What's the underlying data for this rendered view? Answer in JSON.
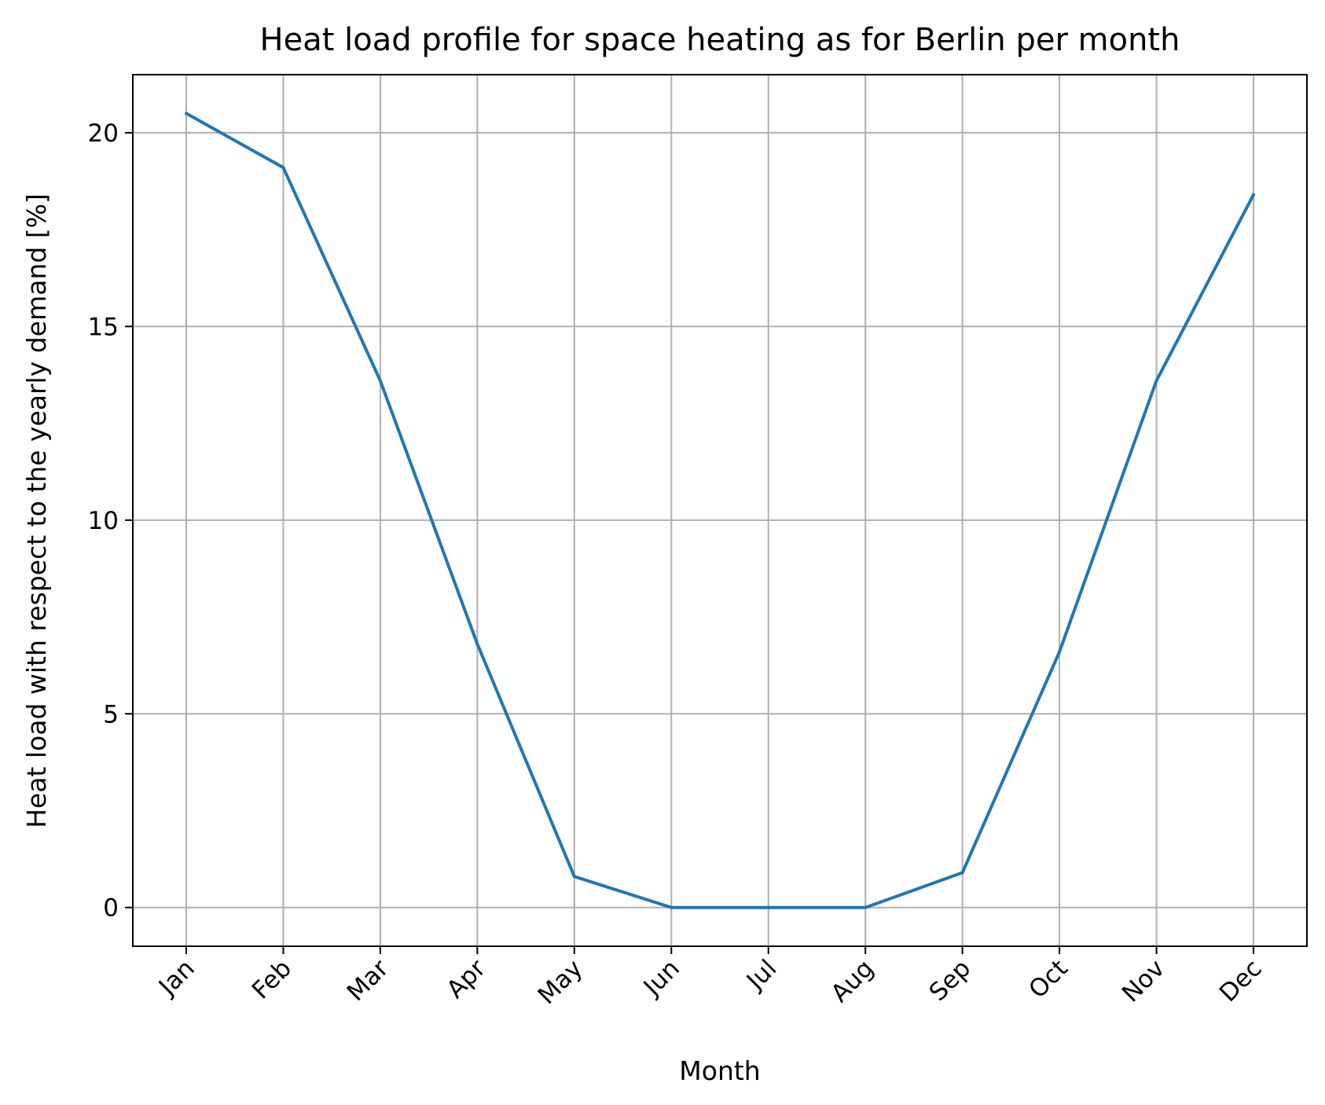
{
  "chart_data": {
    "type": "line",
    "title": "Heat load profile for space heating as for Berlin per month",
    "xlabel": "Month",
    "ylabel": "Heat load with respect to the yearly demand [%]",
    "categories": [
      "Jan",
      "Feb",
      "Mar",
      "Apr",
      "May",
      "Jun",
      "Jul",
      "Aug",
      "Sep",
      "Oct",
      "Nov",
      "Dec"
    ],
    "series": [
      {
        "name": "",
        "color": "#1f77b4",
        "values": [
          20.5,
          19.1,
          13.6,
          6.8,
          0.8,
          0.0,
          0.0,
          0.0,
          0.9,
          6.6,
          13.6,
          18.4
        ]
      }
    ],
    "ylim": [
      -1,
      21.5
    ],
    "yticks": [
      0,
      5,
      10,
      15,
      20
    ],
    "grid": true,
    "legend": "none",
    "colors": {
      "grid": "#b0b0b0",
      "axes": "#000000"
    }
  }
}
